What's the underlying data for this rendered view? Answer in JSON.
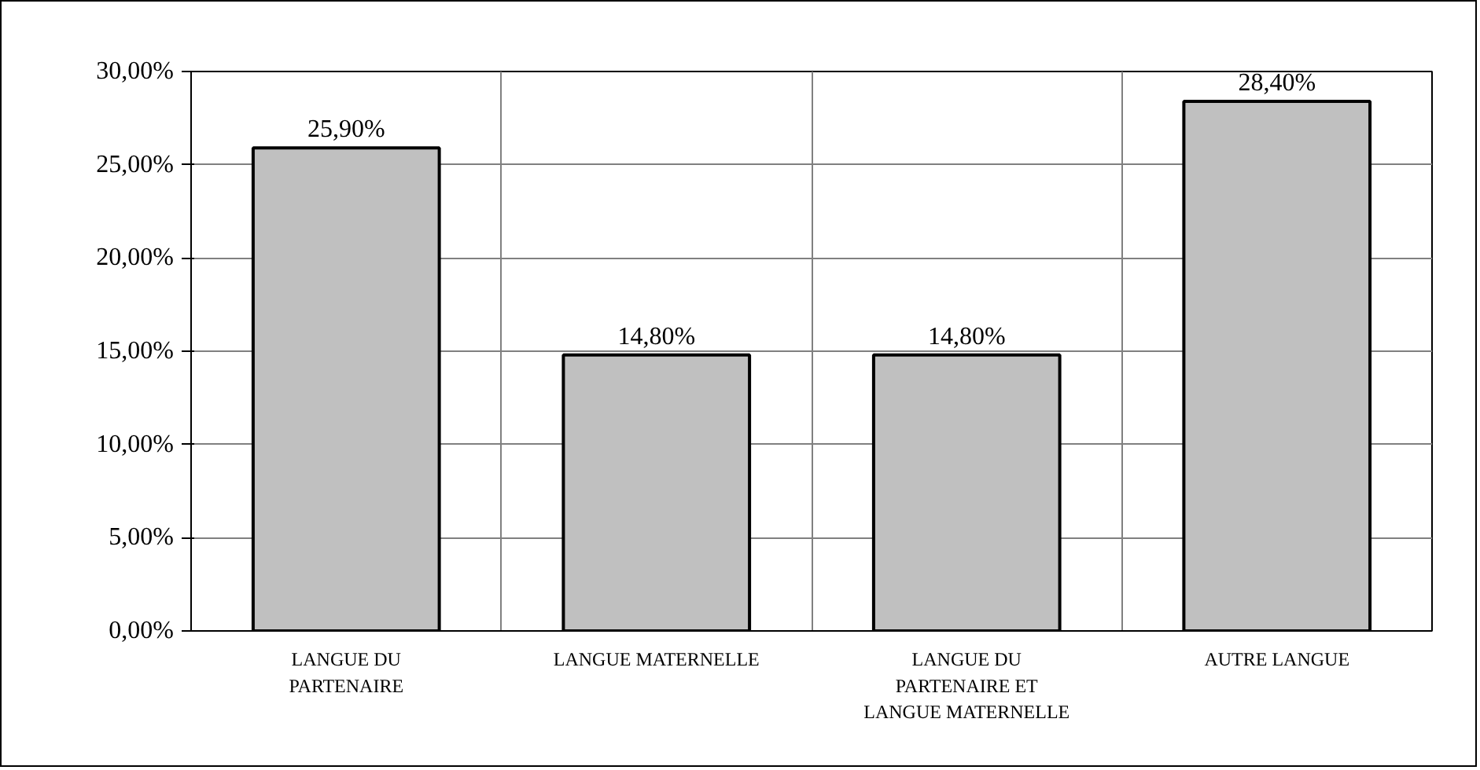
{
  "chart_data": {
    "type": "bar",
    "categories": [
      "LANGUE DU PARTENAIRE",
      "LANGUE MATERNELLE",
      "LANGUE DU PARTENAIRE ET LANGUE MATERNELLE",
      "AUTRE LANGUE"
    ],
    "values": [
      25.9,
      14.8,
      14.8,
      28.4
    ],
    "value_labels": [
      "25,90%",
      "14,80%",
      "14,80%",
      "28,40%"
    ],
    "color": "#c0c0c0",
    "ylim": [
      0,
      30
    ],
    "yticks": [
      {
        "value": 0,
        "label": "0,00%"
      },
      {
        "value": 5,
        "label": "5,00%"
      },
      {
        "value": 10,
        "label": "10,00%"
      },
      {
        "value": 15,
        "label": "15,00%"
      },
      {
        "value": 20,
        "label": "20,00%"
      },
      {
        "value": 25,
        "label": "25,00%"
      },
      {
        "value": 30,
        "label": "30,00%"
      }
    ],
    "grid": true
  }
}
